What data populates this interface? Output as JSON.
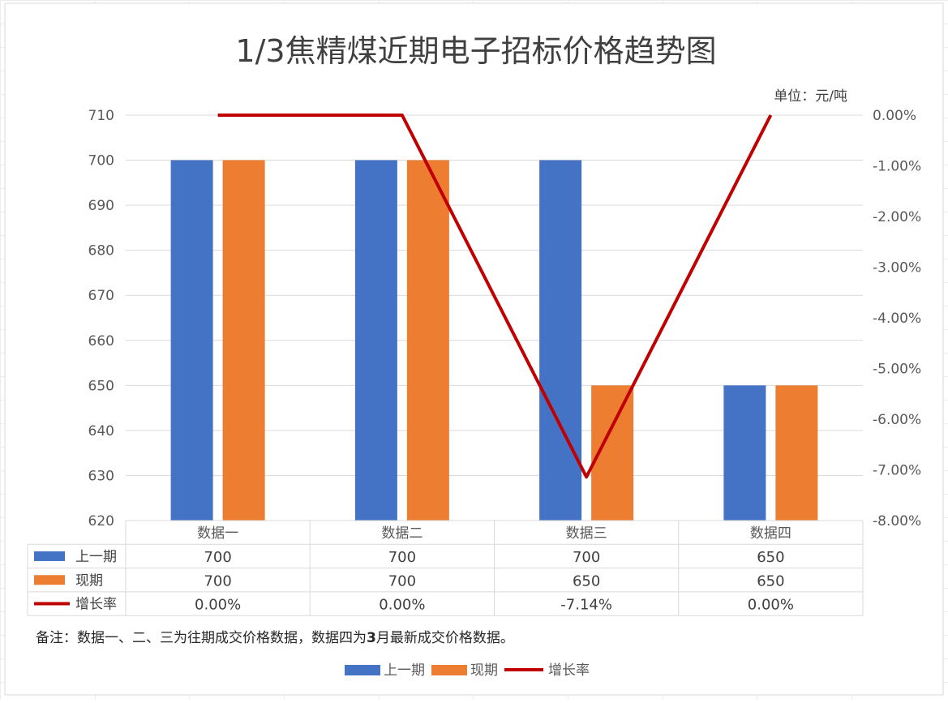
{
  "chart_data": {
    "type": "bar",
    "title": "1/3焦精煤近期电子招标价格趋势图",
    "unit_label": "单位：元/吨",
    "categories": [
      "数据一",
      "数据二",
      "数据三",
      "数据四"
    ],
    "series": [
      {
        "name": "上一期",
        "kind": "bar",
        "axis": "left",
        "color": "#4472C4",
        "values": [
          700,
          700,
          700,
          650
        ],
        "value_labels": [
          "700",
          "700",
          "700",
          "650"
        ]
      },
      {
        "name": "现期",
        "kind": "bar",
        "axis": "left",
        "color": "#ED7D31",
        "values": [
          700,
          700,
          650,
          650
        ],
        "value_labels": [
          "700",
          "700",
          "650",
          "650"
        ]
      },
      {
        "name": "增长率",
        "kind": "line",
        "axis": "right",
        "color": "#C00000",
        "values": [
          0.0,
          0.0,
          -7.14,
          0.0
        ],
        "value_labels": [
          "0.00%",
          "0.00%",
          "-7.14%",
          "0.00%"
        ]
      }
    ],
    "y_left": {
      "min": 620,
      "max": 710,
      "step": 10,
      "tick_labels": [
        "620",
        "630",
        "640",
        "650",
        "660",
        "670",
        "680",
        "690",
        "700",
        "710"
      ]
    },
    "y_right": {
      "min": -8,
      "max": 0,
      "step": 1,
      "tick_labels": [
        "-8.00%",
        "-7.00%",
        "-6.00%",
        "-5.00%",
        "-4.00%",
        "-3.00%",
        "-2.00%",
        "-1.00%",
        "0.00%"
      ]
    },
    "grid": true,
    "legend_position": "bottom",
    "has_data_table": true
  },
  "note": {
    "prefix": "备注：数据一、二、三为往期成交价格数据，数据四为",
    "bold": "3",
    "suffix": "月最新成交价格数据。"
  }
}
